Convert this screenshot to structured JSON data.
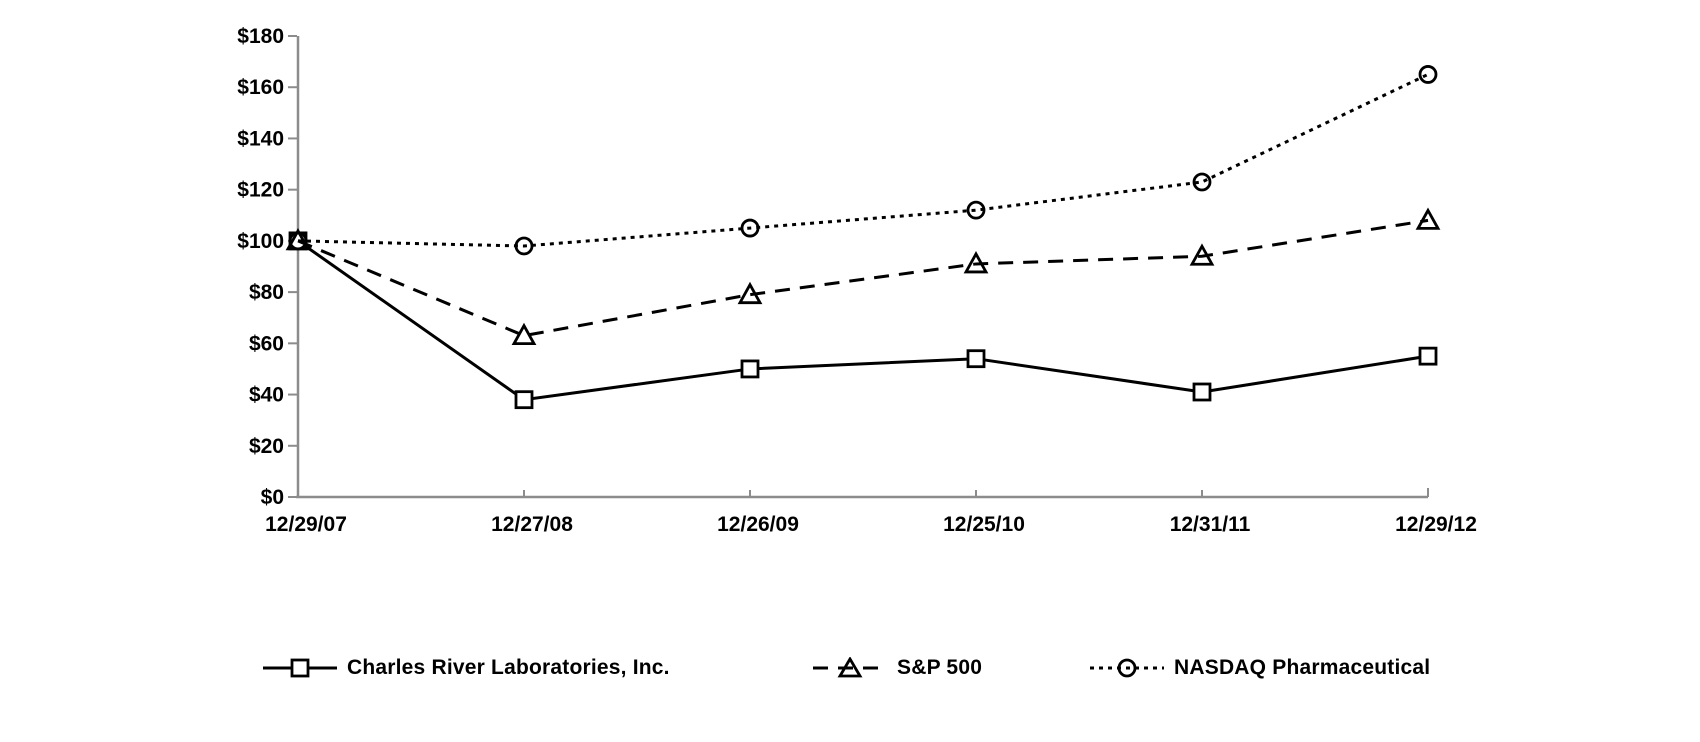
{
  "chart_data": {
    "type": "line",
    "categories": [
      "12/29/07",
      "12/27/08",
      "12/26/09",
      "12/25/10",
      "12/31/11",
      "12/29/12"
    ],
    "y_ticks": [
      "$0",
      "$20",
      "$40",
      "$60",
      "$80",
      "$100",
      "$120",
      "$140",
      "$160",
      "$180"
    ],
    "ylim": [
      0,
      180
    ],
    "y_step": 20,
    "grid": false,
    "legend_position": "bottom",
    "axis_color": "#8c8c8c",
    "line_color": "#000000",
    "series": [
      {
        "name": "Charles River Laboratories, Inc.",
        "marker": "square",
        "line_style": "solid",
        "values": [
          100,
          38,
          50,
          54,
          41,
          55
        ]
      },
      {
        "name": "S&P 500",
        "marker": "triangle",
        "line_style": "dashed",
        "values": [
          100,
          63,
          79,
          91,
          94,
          108
        ]
      },
      {
        "name": "NASDAQ Pharmaceutical",
        "marker": "circle",
        "line_style": "dotted",
        "values": [
          100,
          98,
          105,
          112,
          123,
          165
        ]
      }
    ]
  }
}
